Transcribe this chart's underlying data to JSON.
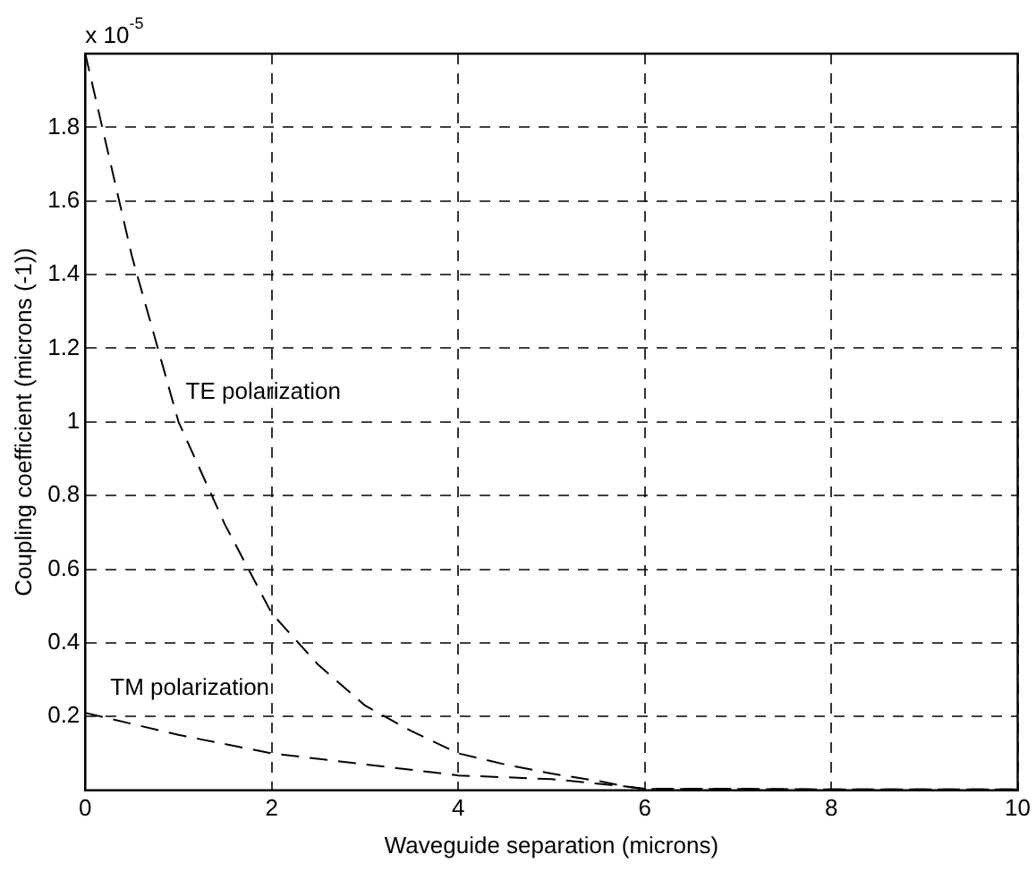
{
  "chart_data": {
    "type": "line",
    "xlabel": "Waveguide separation (microns)",
    "ylabel": "Coupling coefficient (microns (-1))",
    "xlim": [
      0,
      10
    ],
    "xticks": [
      0,
      2,
      4,
      6,
      8,
      10
    ],
    "ylim": [
      0,
      2
    ],
    "yticks": [
      {
        "value": 0,
        "label": null
      },
      0.2,
      0.4,
      0.6,
      0.8,
      1,
      1.2,
      1.4,
      1.6,
      1.8,
      {
        "value": 2,
        "label": null
      }
    ],
    "grid": true,
    "marker": "none",
    "line_style": "dashed",
    "annotations": [
      "x 10$^{-5}$"
    ],
    "series": [
      {
        "name": "TE polarization",
        "color": "#000000",
        "x": [
          0,
          0.5,
          1,
          1.5,
          2,
          2.5,
          3,
          3.5,
          4,
          4.5,
          5,
          5.5,
          5.8,
          6,
          7,
          8,
          9,
          10
        ],
        "values": [
          2.0,
          1.45,
          1.0,
          0.72,
          0.48,
          0.34,
          0.23,
          0.16,
          0.1,
          0.07,
          0.045,
          0.025,
          0.01,
          0.004,
          0.004,
          0.002,
          0.002,
          0.002
        ]
      },
      {
        "name": "TM polarization",
        "color": "#000000",
        "x": [
          0,
          1,
          2,
          3,
          4,
          5,
          5.8,
          6,
          7,
          8,
          9,
          10
        ],
        "values": [
          0.21,
          0.15,
          0.1,
          0.07,
          0.04,
          0.03,
          0.01,
          0.003,
          0.003,
          0.002,
          0.002,
          0.002
        ]
      }
    ]
  }
}
